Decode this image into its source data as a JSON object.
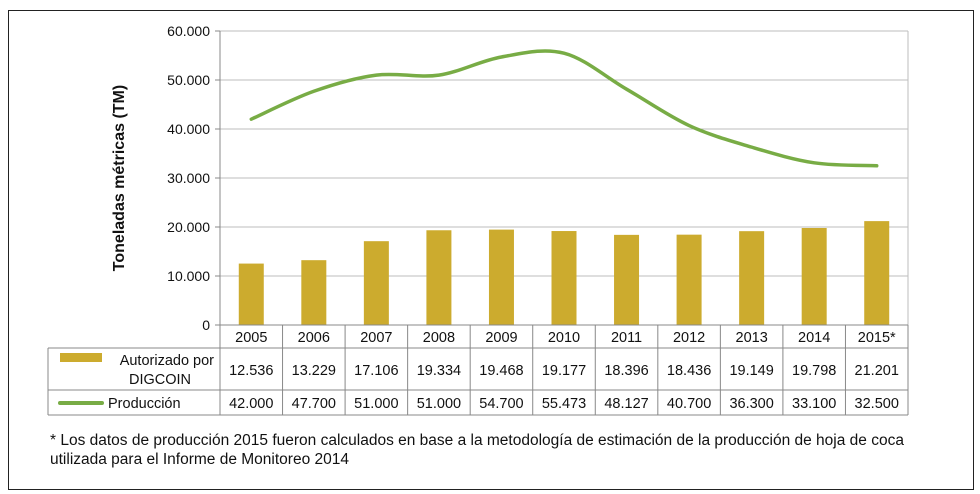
{
  "chart_data": {
    "type": "bar+line",
    "categories": [
      "2005",
      "2006",
      "2007",
      "2008",
      "2009",
      "2010",
      "2011",
      "2012",
      "2013",
      "2014",
      "2015*"
    ],
    "ylabel": "Toneladas métricas (TM)",
    "ylim": [
      0,
      60000
    ],
    "yticks": [
      0,
      10000,
      20000,
      30000,
      40000,
      50000,
      60000
    ],
    "ytick_labels": [
      "0",
      "10.000",
      "20.000",
      "30.000",
      "40.000",
      "50.000",
      "60.000"
    ],
    "grid": true,
    "series": [
      {
        "name": "Autorizado por DIGCOIN",
        "name_lines": [
          "Autorizado por",
          "DIGCOIN"
        ],
        "type": "bar",
        "color": "#CCAB2E",
        "values": [
          12536,
          13229,
          17106,
          19334,
          19468,
          19177,
          18396,
          18436,
          19149,
          19798,
          21201
        ],
        "labels": [
          "12.536",
          "13.229",
          "17.106",
          "19.334",
          "19.468",
          "19.177",
          "18.396",
          "18.436",
          "19.149",
          "19.798",
          "21.201"
        ]
      },
      {
        "name": "Producción",
        "type": "line",
        "color": "#78AC45",
        "values": [
          42000,
          47700,
          51000,
          51000,
          54700,
          55473,
          48127,
          40700,
          36300,
          33100,
          32500
        ],
        "labels": [
          "42.000",
          "47.700",
          "51.000",
          "51.000",
          "54.700",
          "55.473",
          "48.127",
          "40.700",
          "36.300",
          "33.100",
          "32.500"
        ]
      }
    ],
    "legend": "data-table"
  },
  "footnote": "* Los datos de producción 2015 fueron calculados en base a la metodología de estimación de la producción de hoja de coca utilizada para el Informe de Monitoreo 2014"
}
